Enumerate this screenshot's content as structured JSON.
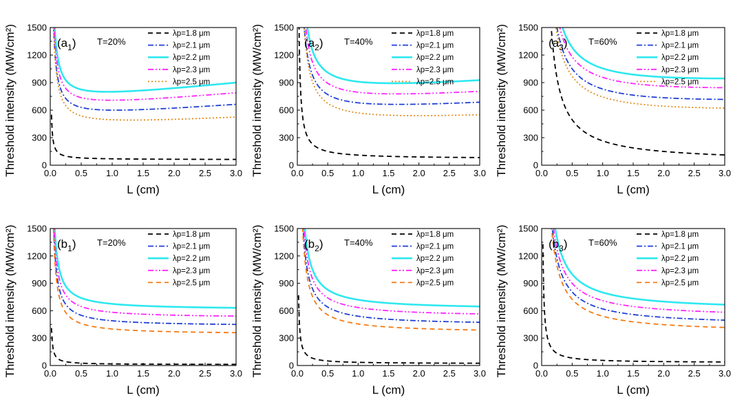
{
  "chart_data": [
    {
      "id": "a1",
      "type": "line",
      "panel_label": "(a1)",
      "panel_main": "(a",
      "panel_sub": "1",
      "panel_close": ")",
      "annotation": "T=20%",
      "xlabel": "L (cm)",
      "ylabel": "Threshold intensity (MW/cm²)",
      "xlim": [
        0,
        3
      ],
      "ylim": [
        0,
        1500
      ],
      "xticks": [
        "0.0",
        "0.5",
        "1.0",
        "1.5",
        "2.0",
        "2.5",
        "3.0"
      ],
      "yticks": [
        "0",
        "300",
        "600",
        "900",
        "1200",
        "1500"
      ],
      "series": [
        {
          "name": "λp=1.8 μm",
          "color": "#000000",
          "style": "dash",
          "k": 9.8,
          "c": 60
        },
        {
          "name": "λp=2.1 μm",
          "color": "#1f3fd6",
          "style": "dashdot",
          "k": 55,
          "c": 495,
          "slope": 50
        },
        {
          "name": "λp=2.2 μm",
          "color": "#2ee8ef",
          "style": "solid",
          "k": 60,
          "c": 670,
          "slope": 70
        },
        {
          "name": "λp=2.3 μm",
          "color": "#ff22ff",
          "style": "dashdotdot",
          "k": 58,
          "c": 590,
          "slope": 60
        },
        {
          "name": "λp=2.5 μm",
          "color": "#e08c1a",
          "style": "dot",
          "k": 60,
          "c": 400,
          "slope": 35
        }
      ]
    },
    {
      "id": "a2",
      "type": "line",
      "panel_label": "(a2)",
      "panel_main": "(a",
      "panel_sub": "2",
      "panel_close": ")",
      "annotation": "T=40%",
      "xlabel": "L (cm)",
      "ylabel": "Threshold intensity (MW/cm²)",
      "xlim": [
        0,
        3
      ],
      "ylim": [
        0,
        1500
      ],
      "xticks": [
        "0.0",
        "0.5",
        "1.0",
        "1.5",
        "2.0",
        "2.5",
        "3.0"
      ],
      "yticks": [
        "0",
        "300",
        "600",
        "900",
        "1200",
        "1500"
      ],
      "series": [
        {
          "name": "λp=1.8 μm",
          "color": "#000000",
          "style": "dash",
          "k": 40,
          "c": 70
        },
        {
          "name": "λp=2.1 μm",
          "color": "#1f3fd6",
          "style": "dashdot",
          "k": 110,
          "c": 530,
          "slope": 40
        },
        {
          "name": "λp=2.2 μm",
          "color": "#2ee8ef",
          "style": "solid",
          "k": 125,
          "c": 735,
          "slope": 50
        },
        {
          "name": "λp=2.3 μm",
          "color": "#ff22ff",
          "style": "dashdotdot",
          "k": 120,
          "c": 630,
          "slope": 45
        },
        {
          "name": "λp=2.5 μm",
          "color": "#e08c1a",
          "style": "dot",
          "k": 120,
          "c": 420,
          "slope": 30
        }
      ]
    },
    {
      "id": "a3",
      "type": "line",
      "panel_label": "(a3)",
      "panel_main": "(a",
      "panel_sub": "3",
      "panel_close": ")",
      "annotation": "T=60%",
      "xlabel": "L (cm)",
      "ylabel": "Threshold intensity (MW/cm²)",
      "xlim": [
        0,
        3
      ],
      "ylim": [
        0,
        1500
      ],
      "xticks": [
        "0.0",
        "0.5",
        "1.0",
        "1.5",
        "2.0",
        "2.5",
        "3.0"
      ],
      "yticks": [
        "0",
        "300",
        "600",
        "900",
        "1200",
        "1500"
      ],
      "series": [
        {
          "name": "λp=1.8 μm",
          "color": "#000000",
          "style": "dash",
          "k": 230,
          "c": 35
        },
        {
          "name": "λp=2.1 μm",
          "color": "#1f3fd6",
          "style": "dashdot",
          "k": 230,
          "c": 580,
          "slope": 20
        },
        {
          "name": "λp=2.2 μm",
          "color": "#2ee8ef",
          "style": "solid",
          "k": 240,
          "c": 790,
          "slope": 25
        },
        {
          "name": "λp=2.3 μm",
          "color": "#ff22ff",
          "style": "dashdotdot",
          "k": 235,
          "c": 700,
          "slope": 22
        },
        {
          "name": "λp=2.5 μm",
          "color": "#e08c1a",
          "style": "dot",
          "k": 235,
          "c": 490,
          "slope": 18
        }
      ]
    },
    {
      "id": "b1",
      "type": "line",
      "panel_label": "(b1)",
      "panel_main": "(b",
      "panel_sub": "1",
      "panel_close": ")",
      "annotation": "T=20%",
      "xlabel": "L (cm)",
      "ylabel": "Threshold intensity (MW/cm²)",
      "xlim": [
        0,
        3
      ],
      "ylim": [
        0,
        1500
      ],
      "xticks": [
        "0.0",
        "0.5",
        "1.0",
        "1.5",
        "2.0",
        "2.5",
        "3.0"
      ],
      "yticks": [
        "0",
        "300",
        "600",
        "900",
        "1200",
        "1500"
      ],
      "series": [
        {
          "name": "λp=1.8 μm",
          "color": "#000000",
          "style": "dash",
          "k": 8,
          "c": 10
        },
        {
          "name": "λp=2.1 μm",
          "color": "#1f3fd6",
          "style": "dashdot",
          "k": 60,
          "c": 430
        },
        {
          "name": "λp=2.2 μm",
          "color": "#2ee8ef",
          "style": "solid",
          "k": 65,
          "c": 610
        },
        {
          "name": "λp=2.3 μm",
          "color": "#ff22ff",
          "style": "dashdotdot",
          "k": 63,
          "c": 520
        },
        {
          "name": "λp=2.5 μm",
          "color": "#f47a10",
          "style": "dash",
          "k": 60,
          "c": 340
        }
      ]
    },
    {
      "id": "b2",
      "type": "line",
      "panel_label": "(b2)",
      "panel_main": "(b",
      "panel_sub": "2",
      "panel_close": ")",
      "annotation": "T=40%",
      "xlabel": "L (cm)",
      "ylabel": "Threshold intensity (MW/cm²)",
      "xlim": [
        0,
        3
      ],
      "ylim": [
        0,
        1500
      ],
      "xticks": [
        "0.0",
        "0.5",
        "1.0",
        "1.5",
        "2.0",
        "2.5",
        "3.0"
      ],
      "yticks": [
        "0",
        "300",
        "600",
        "900",
        "1200",
        "1500"
      ],
      "series": [
        {
          "name": "λp=1.8 μm",
          "color": "#000000",
          "style": "dash",
          "k": 15,
          "c": 20
        },
        {
          "name": "λp=2.1 μm",
          "color": "#1f3fd6",
          "style": "dashdot",
          "k": 100,
          "c": 440
        },
        {
          "name": "λp=2.2 μm",
          "color": "#2ee8ef",
          "style": "solid",
          "k": 110,
          "c": 610
        },
        {
          "name": "λp=2.3 μm",
          "color": "#ff22ff",
          "style": "dashdotdot",
          "k": 105,
          "c": 530
        },
        {
          "name": "λp=2.5 μm",
          "color": "#f47a10",
          "style": "dash",
          "k": 100,
          "c": 355
        }
      ]
    },
    {
      "id": "b3",
      "type": "line",
      "panel_label": "(b3)",
      "panel_main": "(b",
      "panel_sub": "3",
      "panel_close": ")",
      "annotation": "T=60%",
      "xlabel": "L (cm)",
      "ylabel": "Threshold intensity (MW/cm²)",
      "xlim": [
        0,
        3
      ],
      "ylim": [
        0,
        1500
      ],
      "xticks": [
        "0.0",
        "0.5",
        "1.0",
        "1.5",
        "2.0",
        "2.5",
        "3.0"
      ],
      "yticks": [
        "0",
        "300",
        "600",
        "900",
        "1200",
        "1500"
      ],
      "series": [
        {
          "name": "λp=1.8 μm",
          "color": "#000000",
          "style": "dash",
          "k": 26,
          "c": 30
        },
        {
          "name": "λp=2.1 μm",
          "color": "#1f3fd6",
          "style": "dashdot",
          "k": 185,
          "c": 435
        },
        {
          "name": "λp=2.2 μm",
          "color": "#2ee8ef",
          "style": "solid",
          "k": 200,
          "c": 600
        },
        {
          "name": "λp=2.3 μm",
          "color": "#ff22ff",
          "style": "dashdotdot",
          "k": 190,
          "c": 520
        },
        {
          "name": "λp=2.5 μm",
          "color": "#f47a10",
          "style": "dash",
          "k": 185,
          "c": 355
        }
      ]
    }
  ]
}
